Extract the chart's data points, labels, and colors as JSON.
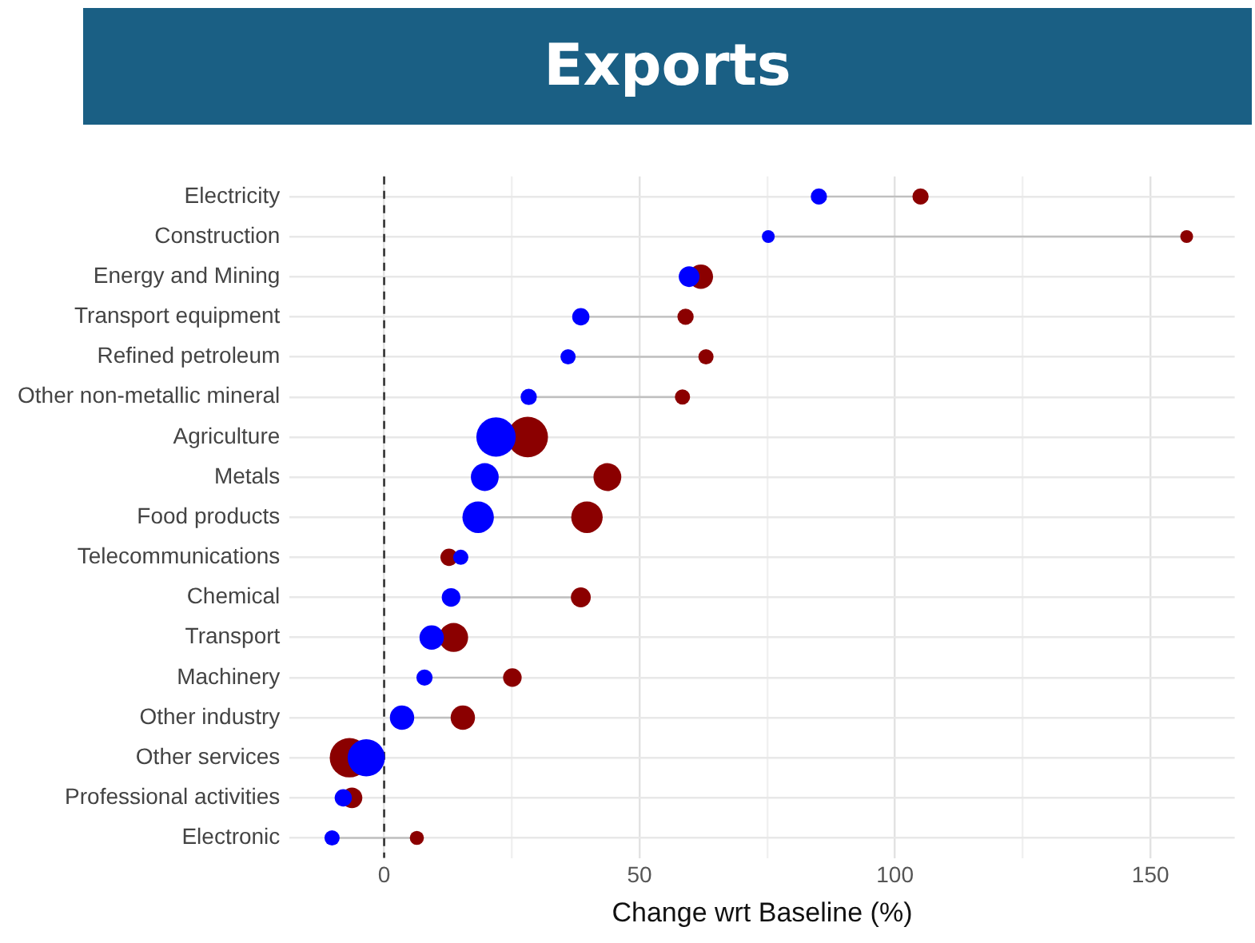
{
  "chart_data": {
    "type": "bubble",
    "orientation": "horizontal",
    "title": "Exports",
    "xlabel": "Change wrt Baseline (%)",
    "categories": [
      "Electricity",
      "Construction",
      "Energy and Mining",
      "Transport equipment",
      "Refined petroleum",
      "Other non-metallic mineral",
      "Agriculture",
      "Metals",
      "Food products",
      "Telecommunications",
      "Chemical",
      "Transport",
      "Machinery",
      "Other industry",
      "Other services",
      "Professional activities",
      "Electronic"
    ],
    "series": [
      {
        "color": "#0000ff",
        "values": [
          85.1,
          75.2,
          59.7,
          38.5,
          36.0,
          28.3,
          21.9,
          19.7,
          18.4,
          15.0,
          13.1,
          9.3,
          7.9,
          3.5,
          -3.5,
          -8.0,
          -10.2
        ],
        "sizes": [
          0.16,
          0.1,
          0.26,
          0.18,
          0.14,
          0.16,
          0.94,
          0.47,
          0.6,
          0.14,
          0.21,
          0.36,
          0.16,
          0.36,
          0.84,
          0.18,
          0.14
        ]
      },
      {
        "color": "#8b0000",
        "values": [
          105.0,
          157.1,
          62.0,
          59.0,
          63.0,
          58.4,
          28.1,
          43.7,
          39.7,
          12.7,
          38.5,
          13.6,
          25.1,
          15.4,
          -6.8,
          -6.3,
          6.4
        ],
        "sizes": [
          0.16,
          0.1,
          0.36,
          0.16,
          0.14,
          0.14,
          1,
          0.47,
          0.6,
          0.18,
          0.24,
          0.51,
          0.21,
          0.36,
          0.94,
          0.26,
          0.12
        ]
      }
    ],
    "xlim": [
      -18.5,
      166.5
    ],
    "xticks": [
      0,
      {
        "value": 25,
        "label": null
      },
      50,
      {
        "value": 75,
        "label": null
      },
      100,
      {
        "value": 125,
        "label": null
      },
      150
    ],
    "ref_lines": [
      {
        "axis": "x",
        "value": 0,
        "color": "#333333",
        "line_style": "dashed"
      }
    ],
    "grid": true,
    "legend": false
  }
}
